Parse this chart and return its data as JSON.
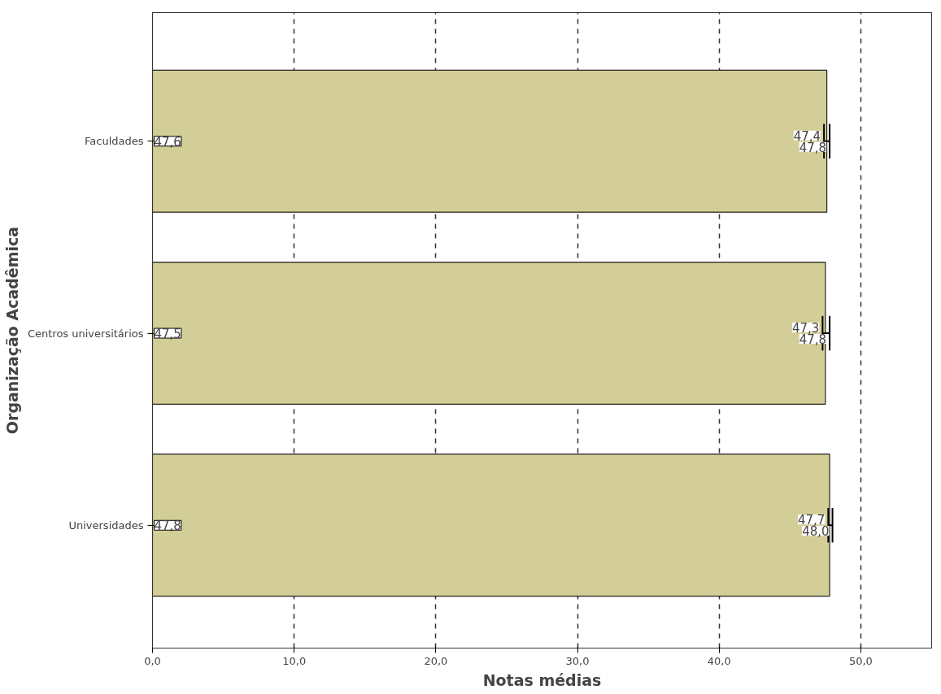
{
  "chart_data": {
    "type": "bar",
    "orientation": "horizontal",
    "xlabel": "Notas médias",
    "ylabel": "Organização Acadêmica",
    "categories": [
      "Faculdades",
      "Centros universitários",
      "Universidades"
    ],
    "values": [
      47.6,
      47.5,
      47.8
    ],
    "value_labels": [
      "47,6",
      "47,5",
      "47,8"
    ],
    "errors": [
      [
        47.4,
        47.8
      ],
      [
        47.3,
        47.8
      ],
      [
        47.7,
        48.0
      ]
    ],
    "color": "#d3ce97",
    "xlim": [
      0,
      55
    ],
    "xticks": [
      {
        "value": 0,
        "label": "0,0"
      },
      {
        "value": 10,
        "label": "10,0"
      },
      {
        "value": 20,
        "label": "20,0"
      },
      {
        "value": 30,
        "label": "30,0"
      },
      {
        "value": 40,
        "label": "40,0"
      },
      {
        "value": 50,
        "label": "50,0"
      }
    ],
    "grid": "x",
    "annotations": [
      {
        "text": "47,4",
        "x": 47.4,
        "y": "Faculdades"
      },
      {
        "text": "47,8",
        "x": 47.8,
        "y": "Faculdades"
      },
      {
        "text": "47,3",
        "x": 47.3,
        "y": "Centros universitários"
      },
      {
        "text": "47,8",
        "x": 47.8,
        "y": "Centros universitários"
      },
      {
        "text": "47,7",
        "x": 47.7,
        "y": "Universidades"
      },
      {
        "text": "48,0",
        "x": 48.0,
        "y": "Universidades"
      }
    ]
  }
}
